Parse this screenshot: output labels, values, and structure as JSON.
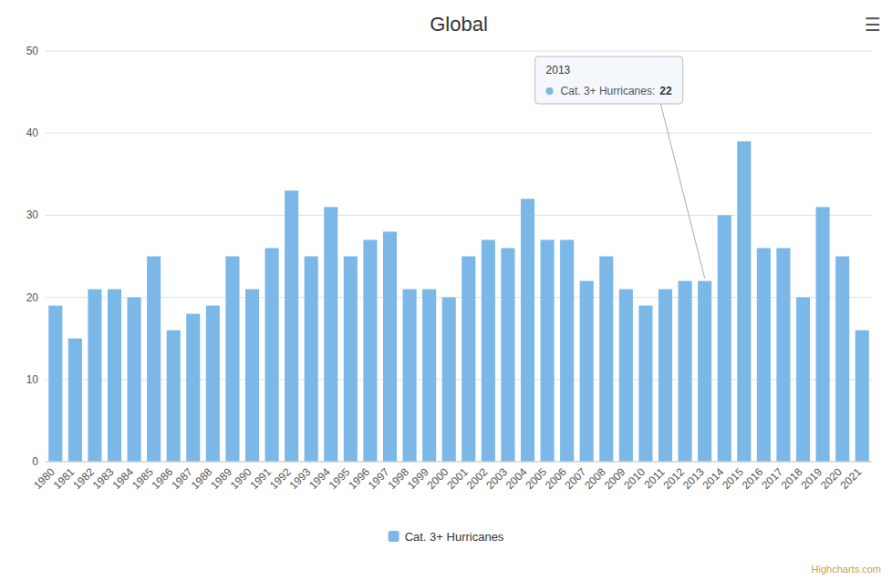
{
  "chart_data": {
    "type": "bar",
    "title": "Global",
    "categories": [
      "1980",
      "1981",
      "1982",
      "1983",
      "1984",
      "1985",
      "1986",
      "1987",
      "1988",
      "1989",
      "1990",
      "1991",
      "1992",
      "1993",
      "1994",
      "1995",
      "1996",
      "1997",
      "1998",
      "1999",
      "2000",
      "2001",
      "2002",
      "2003",
      "2004",
      "2005",
      "2006",
      "2007",
      "2008",
      "2009",
      "2010",
      "2011",
      "2012",
      "2013",
      "2014",
      "2015",
      "2016",
      "2017",
      "2018",
      "2019",
      "2020",
      "2021"
    ],
    "series": [
      {
        "name": "Cat. 3+ Hurricanes",
        "color": "#7bb8e8",
        "values": [
          19,
          15,
          21,
          21,
          20,
          25,
          16,
          18,
          19,
          25,
          21,
          26,
          33,
          25,
          31,
          25,
          27,
          28,
          21,
          21,
          20,
          25,
          27,
          26,
          32,
          27,
          27,
          22,
          25,
          21,
          19,
          21,
          22,
          22,
          30,
          39,
          26,
          26,
          20,
          31,
          25,
          16
        ]
      }
    ],
    "ylim": [
      0,
      50
    ],
    "yticks": [
      0,
      10,
      20,
      30,
      40,
      50
    ],
    "grid": true,
    "legend": "bottom",
    "annotations": [
      {
        "x": "2013",
        "title": "2013",
        "label": "Cat. 3+ Hurricanes:",
        "value": 22
      },
      {
        "text": "Highcharts.com",
        "color": "#c8a04a"
      },
      {
        "text": "☰"
      }
    ]
  }
}
